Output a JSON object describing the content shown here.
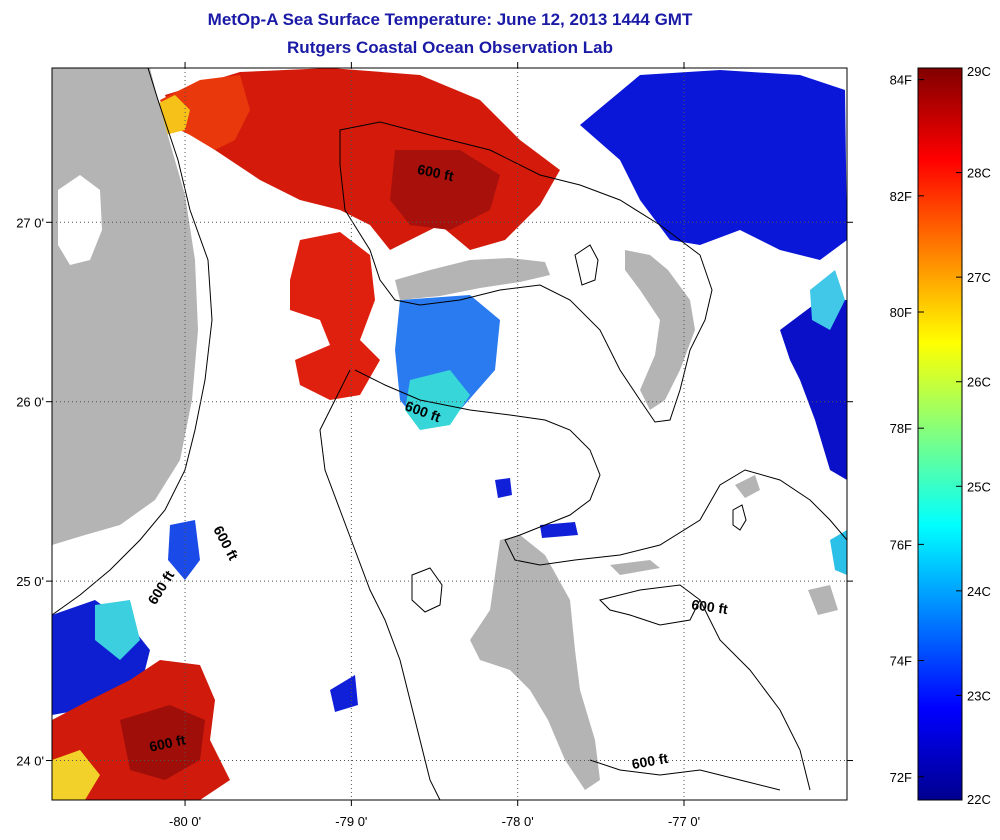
{
  "title": {
    "line1": "MetOp-A Sea Surface Temperature:  June 12, 2013 1444 GMT",
    "line2": "Rutgers Coastal Ocean Observation Lab"
  },
  "map": {
    "lon_range": [
      -80.8,
      -76.02
    ],
    "lat_range": [
      23.78,
      27.86
    ],
    "lon_ticks": [
      {
        "value": -80,
        "label": "-80 0'"
      },
      {
        "value": -79,
        "label": "-79 0'"
      },
      {
        "value": -78,
        "label": "-78 0'"
      },
      {
        "value": -77,
        "label": "-77 0'"
      }
    ],
    "lat_ticks": [
      {
        "value": 27,
        "label": "27 0'"
      },
      {
        "value": 26,
        "label": "26 0'"
      },
      {
        "value": 25,
        "label": "25 0'"
      },
      {
        "value": 24,
        "label": "24 0'"
      }
    ],
    "contour_labels": [
      {
        "text": "600 ft",
        "lon": -78.5,
        "lat": 27.25,
        "angle": 12
      },
      {
        "text": "600 ft",
        "lon": -78.58,
        "lat": 25.92,
        "angle": 20
      },
      {
        "text": "600 ft",
        "lon": -79.78,
        "lat": 25.2,
        "angle": 62
      },
      {
        "text": "600 ft",
        "lon": -80.12,
        "lat": 24.95,
        "angle": -58
      },
      {
        "text": "600 ft",
        "lon": -80.1,
        "lat": 24.07,
        "angle": -12
      },
      {
        "text": "600 ft",
        "lon": -76.85,
        "lat": 24.83,
        "angle": 8
      },
      {
        "text": "600 ft",
        "lon": -77.2,
        "lat": 23.97,
        "angle": -10
      }
    ],
    "colors": {
      "land": "#b4b4b4",
      "contour": "#000000",
      "grid": "#555555"
    }
  },
  "colorbar": {
    "min_c": 22,
    "max_c": 29,
    "celsius_labels": [
      "29C",
      "28C",
      "27C",
      "26C",
      "25C",
      "24C",
      "23C",
      "22C"
    ],
    "fahrenheit_labels": [
      {
        "value": 84,
        "label": "84F"
      },
      {
        "value": 82,
        "label": "82F"
      },
      {
        "value": 80,
        "label": "80F"
      },
      {
        "value": 78,
        "label": "78F"
      },
      {
        "value": 76,
        "label": "76F"
      },
      {
        "value": 74,
        "label": "74F"
      },
      {
        "value": 72,
        "label": "72F"
      }
    ],
    "colormap": "jet"
  }
}
